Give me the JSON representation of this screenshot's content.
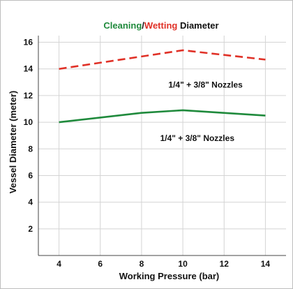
{
  "chart_data": {
    "type": "line",
    "title_parts": [
      {
        "text": "Cleaning",
        "color": "#1f8a3c"
      },
      {
        "text": "/",
        "color": "#111111"
      },
      {
        "text": "Wetting",
        "color": "#e03127"
      },
      {
        "text": " Diameter",
        "color": "#111111"
      }
    ],
    "xlabel": "Working Pressure (bar)",
    "ylabel": "Vessel Diameter (meter)",
    "xlim": [
      3,
      15
    ],
    "ylim": [
      0,
      16.5
    ],
    "x_ticks": [
      4,
      6,
      8,
      10,
      12,
      14
    ],
    "y_ticks": [
      2,
      4,
      6,
      8,
      10,
      12,
      14,
      16
    ],
    "grid": true,
    "series": [
      {
        "role": "wetting",
        "color": "#e03127",
        "dashed": true,
        "x": [
          4,
          10,
          14
        ],
        "y": [
          14.0,
          15.4,
          14.7
        ]
      },
      {
        "role": "cleaning",
        "color": "#1f8a3c",
        "dashed": false,
        "x": [
          4,
          8,
          10,
          14
        ],
        "y": [
          10.0,
          10.7,
          10.9,
          10.5
        ]
      }
    ],
    "annotations": [
      {
        "text": "1/4\" + 3/8\" Nozzles",
        "x": 11.1,
        "y": 12.8
      },
      {
        "text": "1/4\" + 3/8\" Nozzles",
        "x": 10.7,
        "y": 8.8
      }
    ]
  }
}
